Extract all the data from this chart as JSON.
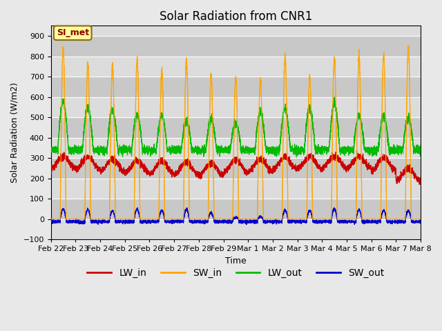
{
  "title": "Solar Radiation from CNR1",
  "xlabel": "Time",
  "ylabel": "Solar Radiation (W/m2)",
  "ylim": [
    -100,
    950
  ],
  "yticks": [
    -100,
    0,
    100,
    200,
    300,
    400,
    500,
    600,
    700,
    800,
    900
  ],
  "annotation": "SI_met",
  "annotation_color": "#8B0000",
  "annotation_bg": "#FFFF99",
  "annotation_border": "#8B6914",
  "fig_bg": "#E8E8E8",
  "plot_bg": "#E8E8E8",
  "colors": {
    "LW_in": "#CC0000",
    "SW_in": "#FFA500",
    "LW_out": "#00BB00",
    "SW_out": "#0000CC"
  },
  "legend_labels": [
    "LW_in",
    "SW_in",
    "LW_out",
    "SW_out"
  ],
  "n_days": 15,
  "ppd": 288,
  "title_fontsize": 12,
  "label_fontsize": 9,
  "tick_fontsize": 8
}
